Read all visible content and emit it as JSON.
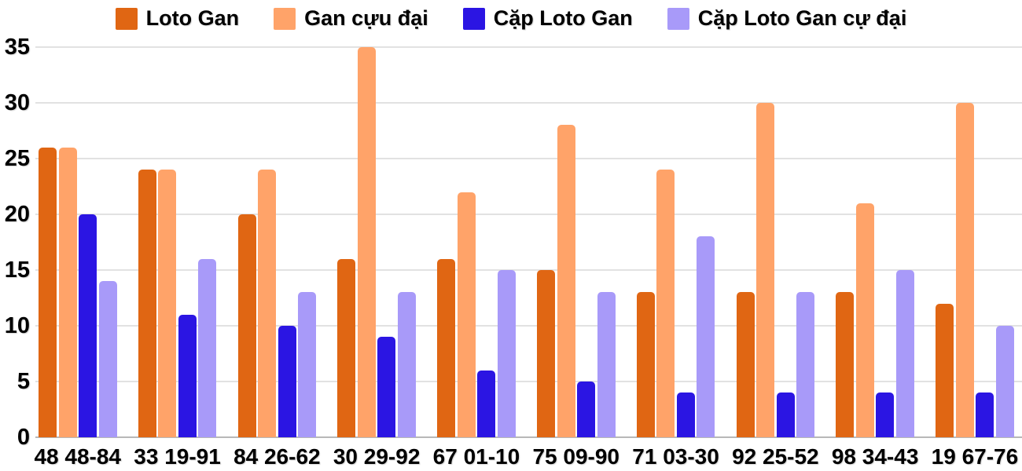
{
  "chart_data": {
    "type": "bar",
    "title": "",
    "xlabel": "",
    "ylabel": "",
    "categories": [
      "48 48-84",
      "33 19-91",
      "84 26-62",
      "30 29-92",
      "67 01-10",
      "75 09-90",
      "71 03-30",
      "92 25-52",
      "98 34-43",
      "19 67-76"
    ],
    "series": [
      {
        "name": "Loto Gan",
        "color": "#E06613",
        "values": [
          26,
          24,
          20,
          16,
          16,
          15,
          13,
          13,
          13,
          12
        ]
      },
      {
        "name": "Gan cựu đại",
        "color": "#FFA369",
        "values": [
          26,
          24,
          24,
          35,
          22,
          28,
          24,
          30,
          21,
          30
        ]
      },
      {
        "name": "Cặp Loto Gan",
        "color": "#2B15E3",
        "values": [
          20,
          11,
          10,
          9,
          6,
          5,
          4,
          4,
          4,
          4
        ]
      },
      {
        "name": "Cặp Loto Gan cự đại",
        "color": "#A89AF9",
        "values": [
          14,
          16,
          13,
          13,
          15,
          13,
          18,
          13,
          15,
          10
        ]
      }
    ],
    "ylim": [
      0,
      35
    ],
    "y_ticks": [
      0,
      5,
      10,
      15,
      20,
      25,
      30,
      35
    ],
    "grid": true,
    "legend_position": "top",
    "colors": {
      "background": "#FFFFFF",
      "gridline": "#E2E2E2",
      "baseline": "#B8B8B8",
      "text": "#000000"
    }
  }
}
